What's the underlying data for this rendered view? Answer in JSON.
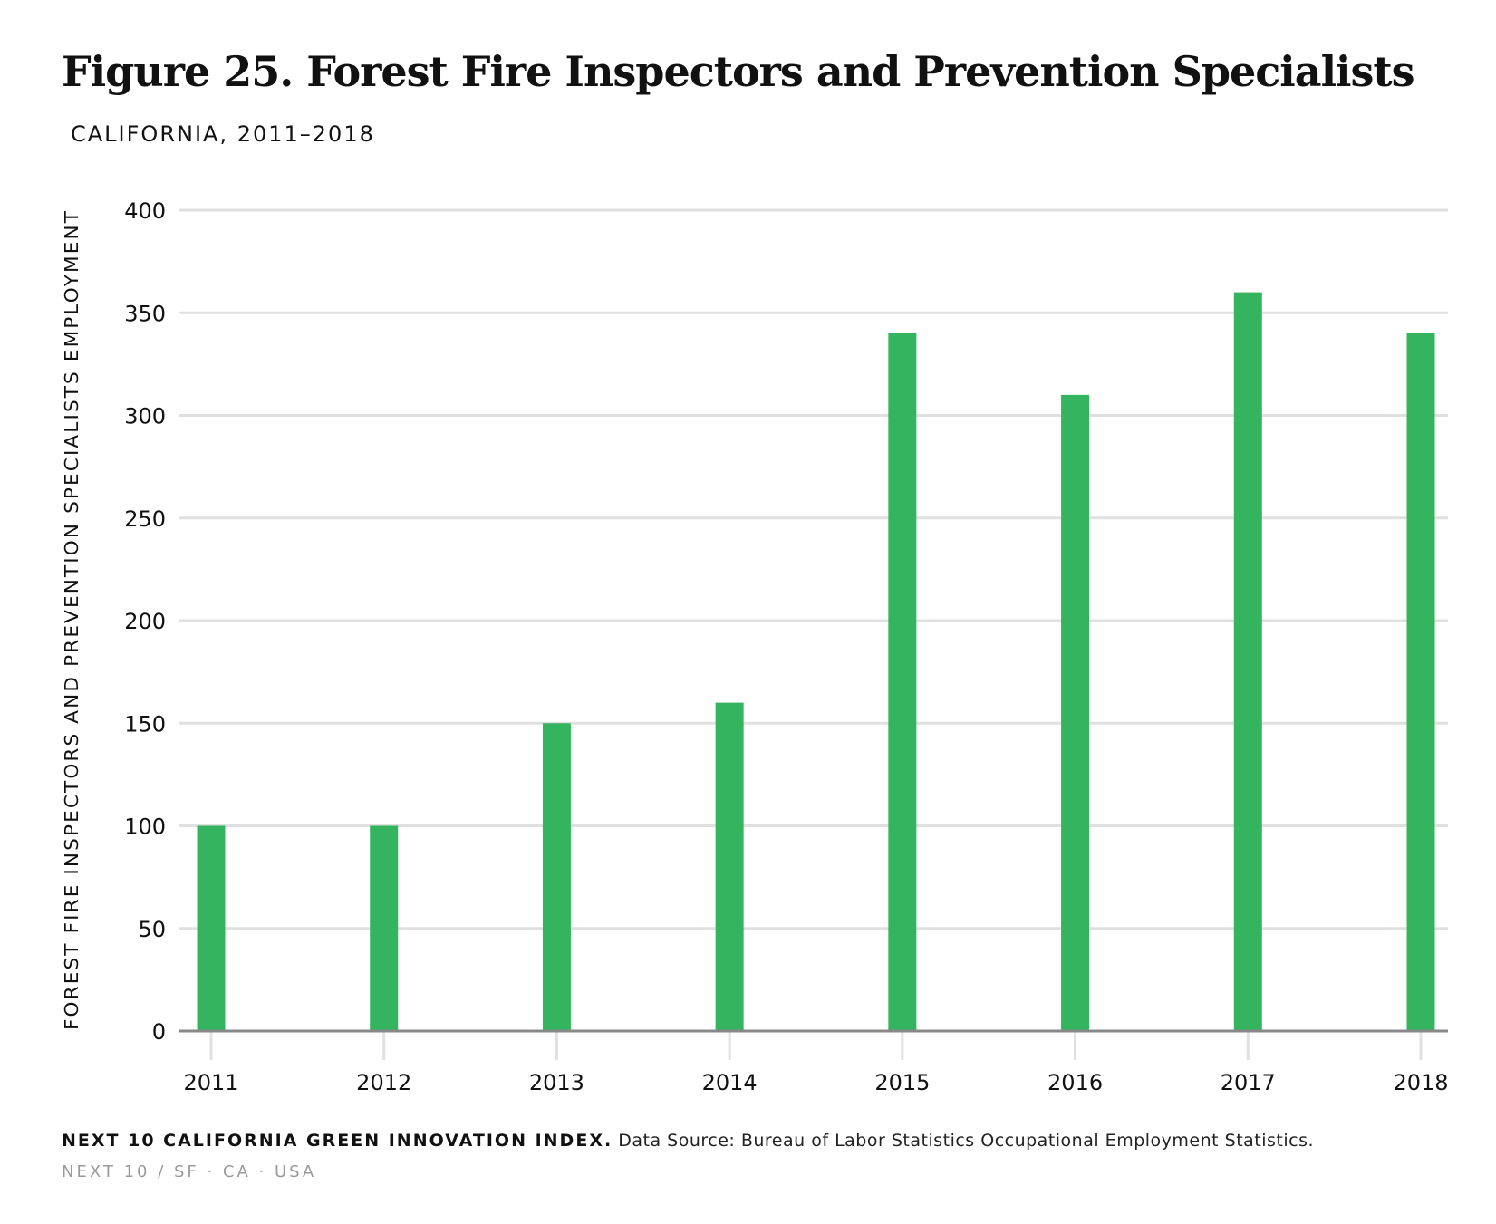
{
  "header": {
    "title": "Figure 25. Forest Fire Inspectors and Prevention Specialists",
    "subtitle": "CALIFORNIA, 2011–2018"
  },
  "footer": {
    "org": "NEXT 10 CALIFORNIA GREEN INNOVATION INDEX.",
    "source": "Data Source: Bureau of Labor Statistics Occupational Employment Statistics.",
    "brand": "NEXT 10  /  SF · CA · USA"
  },
  "colors": {
    "bar": "#35b45f",
    "grid": "#e0e0e0",
    "axis": "#888888",
    "text": "#111111"
  },
  "chart_data": {
    "type": "bar",
    "title": "Figure 25. Forest Fire Inspectors and Prevention Specialists",
    "subtitle": "CALIFORNIA, 2011–2018",
    "xlabel": "",
    "ylabel": "FOREST FIRE INSPECTORS AND PREVENTION SPECIALISTS EMPLOYMENT",
    "categories": [
      "2011",
      "2012",
      "2013",
      "2014",
      "2015",
      "2016",
      "2017",
      "2018"
    ],
    "values": [
      100,
      100,
      150,
      160,
      340,
      310,
      360,
      340
    ],
    "ylim": [
      0,
      400
    ],
    "yticks": [
      0,
      50,
      100,
      150,
      200,
      250,
      300,
      350,
      400
    ],
    "grid": true,
    "legend": "none"
  }
}
